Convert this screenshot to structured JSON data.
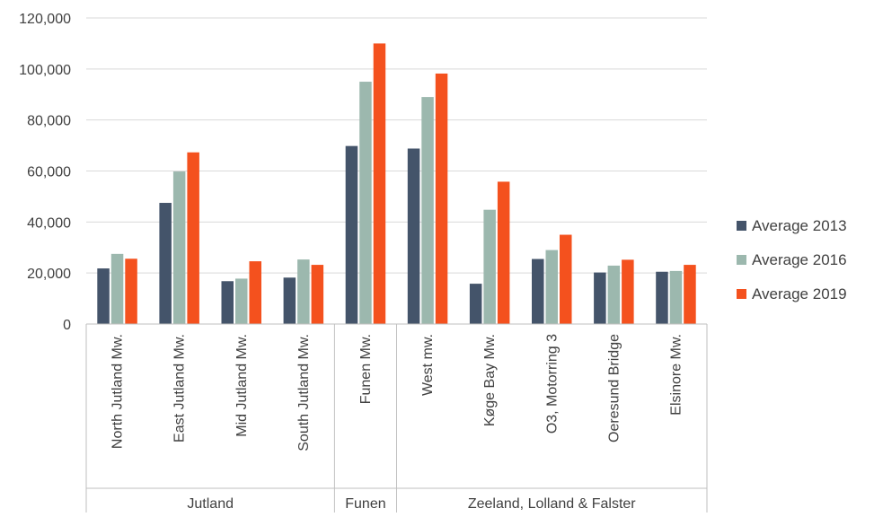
{
  "chart_data": {
    "type": "bar",
    "title": "",
    "xlabel": "",
    "ylabel": "",
    "ylim": [
      0,
      120000
    ],
    "yticks": [
      0,
      20000,
      40000,
      60000,
      80000,
      100000,
      120000
    ],
    "ytick_labels": [
      "0",
      "20,000",
      "40,000",
      "60,000",
      "80,000",
      "100,000",
      "120,000"
    ],
    "grid": true,
    "legend_position": "right",
    "categories": [
      "North Jutland Mw.",
      "East Jutland Mw.",
      "Mid Jutland Mw.",
      "South Jutland Mw.",
      "Funen Mw.",
      "West mw.",
      "Køge Bay Mw.",
      "O3, Motorring 3",
      "Oeresund Bridge",
      "Elsinore Mw."
    ],
    "groups": [
      {
        "label": "Jutland",
        "start": 0,
        "end": 3
      },
      {
        "label": "Funen",
        "start": 4,
        "end": 4
      },
      {
        "label": "Zeeland, Lolland & Falster",
        "start": 5,
        "end": 9
      }
    ],
    "series": [
      {
        "name": "Average 2013",
        "color": "#44546a",
        "values": [
          21800,
          47500,
          16800,
          18200,
          69800,
          68800,
          15800,
          25500,
          20200,
          20500
        ]
      },
      {
        "name": "Average 2016",
        "color": "#9cb8ae",
        "values": [
          27500,
          59800,
          17800,
          25300,
          95000,
          89000,
          44800,
          29000,
          22900,
          20800
        ]
      },
      {
        "name": "Average 2019",
        "color": "#f4511e",
        "values": [
          25600,
          67300,
          24600,
          23200,
          110000,
          98200,
          55800,
          35000,
          25200,
          23200
        ]
      }
    ]
  }
}
